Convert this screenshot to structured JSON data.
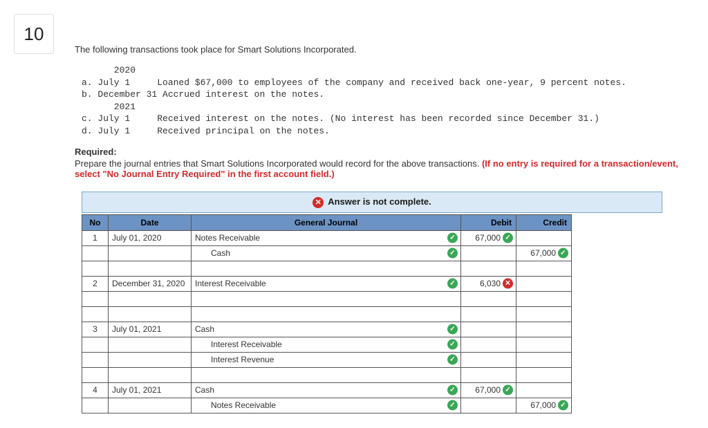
{
  "question_number": "10",
  "intro": "The following transactions took place for Smart Solutions Incorporated.",
  "tx_lines": [
    "      2020",
    "a. July 1     Loaned $67,000 to employees of the company and received back one-year, 9 percent notes.",
    "b. December 31 Accrued interest on the notes.",
    "      2021",
    "c. July 1     Received interest on the notes. (No interest has been recorded since December 31.)",
    "d. July 1     Received principal on the notes."
  ],
  "required_label": "Required:",
  "required_text_plain": "Prepare the journal entries that Smart Solutions Incorporated would record for the above transactions. ",
  "required_text_red": "(If no entry is required for a transaction/event, select \"No Journal Entry Required\" in the first account field.)",
  "banner_text": "Answer is not complete.",
  "headers": {
    "no": "No",
    "date": "Date",
    "gj": "General Journal",
    "debit": "Debit",
    "credit": "Credit"
  },
  "rows": [
    {
      "no": "1",
      "date": "July 01, 2020",
      "account": "Notes Receivable",
      "indent": false,
      "gj_mark": "ok",
      "debit": "67,000",
      "debit_mark": "ok",
      "credit": "",
      "credit_mark": null
    },
    {
      "no": "",
      "date": "",
      "account": "Cash",
      "indent": true,
      "gj_mark": "ok",
      "debit": "",
      "debit_mark": null,
      "credit": "67,000",
      "credit_mark": "ok"
    },
    {
      "sep": true
    },
    {
      "no": "2",
      "date": "December 31, 2020",
      "account": "Interest Receivable",
      "indent": false,
      "gj_mark": "ok",
      "debit": "6,030",
      "debit_mark": "bad",
      "credit": "",
      "credit_mark": null
    },
    {
      "no": "",
      "date": "",
      "account": "",
      "indent": false,
      "gj_mark": null,
      "debit": "",
      "debit_mark": null,
      "credit": "",
      "credit_mark": null
    },
    {
      "sep": true
    },
    {
      "no": "3",
      "date": "July 01, 2021",
      "account": "Cash",
      "indent": false,
      "gj_mark": "ok",
      "debit": "",
      "debit_mark": null,
      "credit": "",
      "credit_mark": null
    },
    {
      "no": "",
      "date": "",
      "account": "Interest Receivable",
      "indent": true,
      "gj_mark": "ok",
      "debit": "",
      "debit_mark": null,
      "credit": "",
      "credit_mark": null
    },
    {
      "no": "",
      "date": "",
      "account": "Interest Revenue",
      "indent": true,
      "gj_mark": "ok",
      "debit": "",
      "debit_mark": null,
      "credit": "",
      "credit_mark": null
    },
    {
      "sep": true
    },
    {
      "no": "4",
      "date": "July 01, 2021",
      "account": "Cash",
      "indent": false,
      "gj_mark": "ok",
      "debit": "67,000",
      "debit_mark": "ok",
      "credit": "",
      "credit_mark": null
    },
    {
      "no": "",
      "date": "",
      "account": "Notes Receivable",
      "indent": true,
      "gj_mark": "ok",
      "debit": "",
      "debit_mark": null,
      "credit": "67,000",
      "credit_mark": "ok"
    }
  ],
  "colors": {
    "banner_bg": "#d9e9f5",
    "header_bg": "#6c93c4",
    "ok": "#3aa757",
    "bad": "#d42a2a",
    "red_text": "#d42a2a"
  },
  "glyphs": {
    "check": "✓",
    "x": "✕"
  }
}
